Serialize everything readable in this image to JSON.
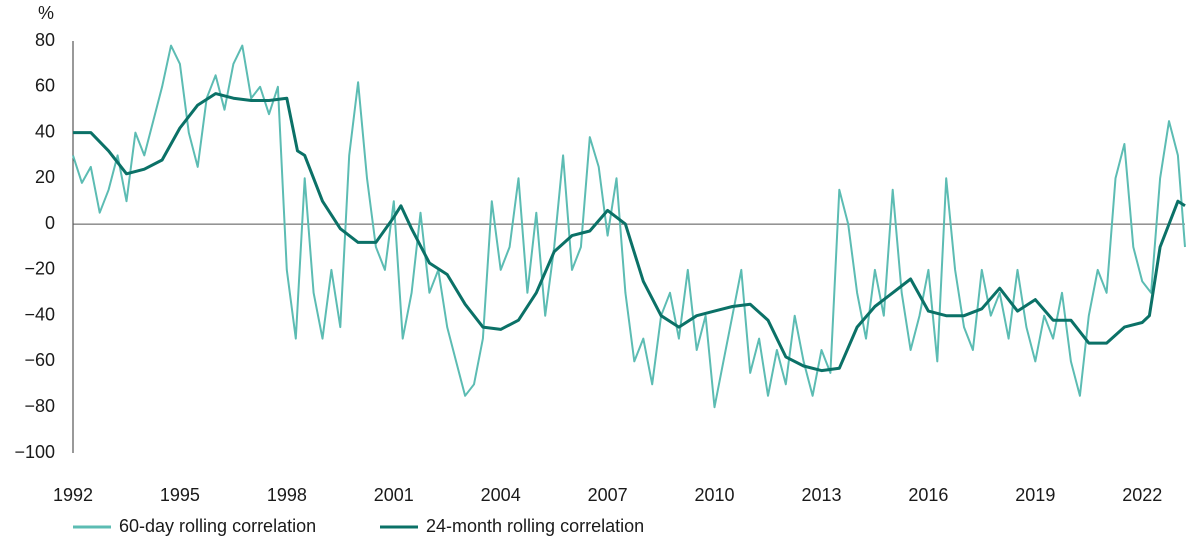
{
  "chart_data": {
    "type": "line",
    "y_unit_label": "%",
    "xlim": [
      1992,
      2023.2
    ],
    "xticks": [
      1992,
      1995,
      1998,
      2001,
      2004,
      2007,
      2010,
      2013,
      2016,
      2019,
      2022
    ],
    "ylim": [
      -100,
      80
    ],
    "yticks": [
      80,
      60,
      40,
      20,
      0,
      {
        "value": -20,
        "label": "−20"
      },
      {
        "value": -40,
        "label": "−40"
      },
      {
        "value": -60,
        "label": "−60"
      },
      {
        "value": -80,
        "label": "−80"
      },
      {
        "value": -100,
        "label": "−100"
      }
    ],
    "grid": false,
    "legend": "bottom",
    "series": [
      {
        "name": "60-day rolling correlation",
        "color": "#5cbcb3",
        "x": [
          1992,
          1992.25,
          1992.5,
          1992.75,
          1993,
          1993.25,
          1993.5,
          1993.75,
          1994,
          1994.25,
          1994.5,
          1994.75,
          1995,
          1995.25,
          1995.5,
          1995.75,
          1996,
          1996.25,
          1996.5,
          1996.75,
          1997,
          1997.25,
          1997.5,
          1997.75,
          1998,
          1998.25,
          1998.5,
          1998.75,
          1999,
          1999.25,
          1999.5,
          1999.75,
          2000,
          2000.25,
          2000.5,
          2000.75,
          2001,
          2001.25,
          2001.5,
          2001.75,
          2002,
          2002.25,
          2002.5,
          2002.75,
          2003,
          2003.25,
          2003.5,
          2003.75,
          2004,
          2004.25,
          2004.5,
          2004.75,
          2005,
          2005.25,
          2005.5,
          2005.75,
          2006,
          2006.25,
          2006.5,
          2006.75,
          2007,
          2007.25,
          2007.5,
          2007.75,
          2008,
          2008.25,
          2008.5,
          2008.75,
          2009,
          2009.25,
          2009.5,
          2009.75,
          2010,
          2010.25,
          2010.5,
          2010.75,
          2011,
          2011.25,
          2011.5,
          2011.75,
          2012,
          2012.25,
          2012.5,
          2012.75,
          2013,
          2013.25,
          2013.5,
          2013.75,
          2014,
          2014.25,
          2014.5,
          2014.75,
          2015,
          2015.25,
          2015.5,
          2015.75,
          2016,
          2016.25,
          2016.5,
          2016.75,
          2017,
          2017.25,
          2017.5,
          2017.75,
          2018,
          2018.25,
          2018.5,
          2018.75,
          2019,
          2019.25,
          2019.5,
          2019.75,
          2020,
          2020.25,
          2020.5,
          2020.75,
          2021,
          2021.25,
          2021.5,
          2021.75,
          2022,
          2022.25,
          2022.5,
          2022.75,
          2023,
          2023.2
        ],
        "values": [
          30,
          18,
          25,
          5,
          15,
          30,
          10,
          40,
          30,
          45,
          60,
          78,
          70,
          40,
          25,
          55,
          65,
          50,
          70,
          78,
          55,
          60,
          48,
          60,
          -20,
          -50,
          20,
          -30,
          -50,
          -20,
          -45,
          30,
          62,
          20,
          -10,
          -20,
          10,
          -50,
          -30,
          5,
          -30,
          -20,
          -45,
          -60,
          -75,
          -70,
          -50,
          10,
          -20,
          -10,
          20,
          -30,
          5,
          -40,
          -10,
          30,
          -20,
          -10,
          38,
          25,
          -5,
          20,
          -30,
          -60,
          -50,
          -70,
          -40,
          -30,
          -50,
          -20,
          -55,
          -40,
          -80,
          -60,
          -40,
          -20,
          -65,
          -50,
          -75,
          -55,
          -70,
          -40,
          -60,
          -75,
          -55,
          -65,
          15,
          0,
          -30,
          -50,
          -20,
          -40,
          15,
          -30,
          -55,
          -40,
          -20,
          -60,
          20,
          -20,
          -45,
          -55,
          -20,
          -40,
          -30,
          -50,
          -20,
          -45,
          -60,
          -40,
          -50,
          -30,
          -60,
          -75,
          -40,
          -20,
          -30,
          20,
          35,
          -10,
          -25,
          -30,
          20,
          45,
          30,
          -10
        ]
      },
      {
        "name": "24-month rolling correlation",
        "color": "#0b7167",
        "x": [
          1992,
          1992.5,
          1993,
          1993.5,
          1994,
          1994.5,
          1995,
          1995.5,
          1996,
          1996.5,
          1997,
          1997.5,
          1998,
          1998.3,
          1998.5,
          1999,
          1999.5,
          2000,
          2000.5,
          2001,
          2001.2,
          2001.5,
          2002,
          2002.5,
          2003,
          2003.5,
          2004,
          2004.5,
          2005,
          2005.5,
          2006,
          2006.5,
          2007,
          2007.5,
          2008,
          2008.5,
          2009,
          2009.5,
          2010,
          2010.5,
          2011,
          2011.5,
          2012,
          2012.5,
          2013,
          2013.5,
          2014,
          2014.5,
          2015,
          2015.5,
          2016,
          2016.5,
          2017,
          2017.5,
          2018,
          2018.5,
          2019,
          2019.5,
          2020,
          2020.5,
          2021,
          2021.5,
          2022,
          2022.2,
          2022.5,
          2023,
          2023.2
        ],
        "values": [
          40,
          40,
          32,
          22,
          24,
          28,
          42,
          52,
          57,
          55,
          54,
          54,
          55,
          32,
          30,
          10,
          -2,
          -8,
          -8,
          3,
          8,
          -2,
          -17,
          -22,
          -35,
          -45,
          -46,
          -42,
          -30,
          -12,
          -5,
          -3,
          6,
          0,
          -25,
          -40,
          -45,
          -40,
          -38,
          -36,
          -35,
          -42,
          -58,
          -62,
          -64,
          -63,
          -45,
          -36,
          -30,
          -24,
          -38,
          -40,
          -40,
          -37,
          -28,
          -38,
          -33,
          -42,
          -42,
          -52,
          -52,
          -45,
          -43,
          -40,
          -10,
          10,
          8
        ]
      }
    ]
  }
}
